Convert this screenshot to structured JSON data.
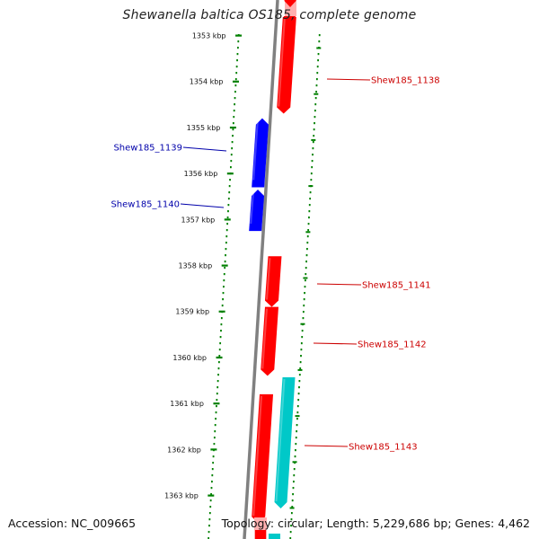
{
  "title": "Shewanella baltica OS185, complete genome",
  "accession": "Accession: NC_009665",
  "summary": "Topology: circular; Length: 5,229,686 bp; Genes: 4,462",
  "ticks": [
    "1353 kbp",
    "1354 kbp",
    "1355 kbp",
    "1356 kbp",
    "1357 kbp",
    "1358 kbp",
    "1359 kbp",
    "1360 kbp",
    "1361 kbp",
    "1362 kbp",
    "1363 kbp"
  ],
  "colors": {
    "forward": "#ff0000",
    "reverse": "#0000ff",
    "feature": "#00c8c8",
    "backbone": "#808080",
    "tick": "#008000"
  },
  "genes": [
    {
      "id": "Shew185_1138",
      "strand": "forward",
      "start_kbp": 1352.6,
      "end_kbp": 1354.7
    },
    {
      "id": "Shew185_1139",
      "strand": "reverse",
      "start_kbp": 1354.8,
      "end_kbp": 1356.3
    },
    {
      "id": "Shew185_1140",
      "strand": "reverse",
      "start_kbp": 1356.35,
      "end_kbp": 1357.25
    },
    {
      "id": "Shew185_1141",
      "strand": "forward",
      "start_kbp": 1357.8,
      "end_kbp": 1358.9
    },
    {
      "id": "Shew185_1142",
      "strand": "forward",
      "start_kbp": 1358.9,
      "end_kbp": 1360.4
    },
    {
      "id": "Shew185_1143",
      "strand": "forward",
      "start_kbp": 1360.8,
      "end_kbp": 1363.6
    }
  ]
}
